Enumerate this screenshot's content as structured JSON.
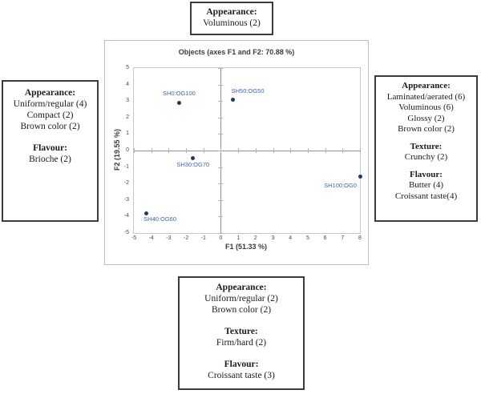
{
  "figure": {
    "boxes": [
      {
        "id": "top",
        "sections": [
          {
            "header": "Appearance:",
            "items": [
              "Voluminous (2)"
            ]
          }
        ]
      },
      {
        "id": "left",
        "sections": [
          {
            "header": "Appearance:",
            "items": [
              "Uniform/regular (4)",
              "Compact (2)",
              "Brown color (2)"
            ]
          },
          {
            "header": "Flavour:",
            "items": [
              "Brioche (2)"
            ]
          }
        ]
      },
      {
        "id": "right",
        "sections": [
          {
            "header": "Appearance:",
            "items": [
              "Laminated/aerated (6)",
              "Voluminous (6)",
              "Glossy (2)",
              "Brown color (2)"
            ]
          },
          {
            "header": "Texture:",
            "items": [
              "Crunchy (2)"
            ]
          },
          {
            "header": "Flavour:",
            "items": [
              "Butter (4)",
              "Croissant taste(4)"
            ]
          }
        ]
      },
      {
        "id": "bottom",
        "sections": [
          {
            "header": "Appearance:",
            "items": [
              "Uniform/regular (2)",
              "Brown color (2)"
            ]
          },
          {
            "header": "Texture:",
            "items": [
              "Firm/hard (2)"
            ]
          },
          {
            "header": "Flavour:",
            "items": [
              "Croissant taste (3)"
            ]
          }
        ]
      }
    ]
  },
  "chart_data": {
    "type": "scatter",
    "title": "Objects (axes F1 and F2: 70.88 %)",
    "xlabel": "F1 (51.33 %)",
    "ylabel": "F2 (19.55 %)",
    "xlim": [
      -5,
      8
    ],
    "ylim": [
      -5,
      5
    ],
    "xticks": [
      -5,
      -4,
      -3,
      -2,
      -1,
      0,
      1,
      2,
      3,
      4,
      5,
      6,
      7,
      8
    ],
    "yticks": [
      5,
      4,
      3,
      2,
      1,
      0,
      -1,
      -2,
      -3,
      -4,
      -5
    ],
    "grid": false,
    "legend": "none",
    "points": [
      {
        "label": "SH0:OG100",
        "x": -2.4,
        "y": 2.9,
        "label_pos": "above"
      },
      {
        "label": "SH50:OG50",
        "x": 0.7,
        "y": 3.1,
        "label_pos": "above-right"
      },
      {
        "label": "SH30:OG70",
        "x": -1.6,
        "y": -0.45,
        "label_pos": "below"
      },
      {
        "label": "SH100:OG0",
        "x": 8.0,
        "y": -1.6,
        "label_pos": "below-left"
      },
      {
        "label": "SH40:OG60",
        "x": -4.3,
        "y": -3.8,
        "label_pos": "below-right"
      }
    ],
    "colors": {
      "point": "#1f3864",
      "point_label": "#3f63b0",
      "axis_line": "#8c919a",
      "tick_mark": "#a9b3c2",
      "text": "#3b3b3b"
    }
  }
}
